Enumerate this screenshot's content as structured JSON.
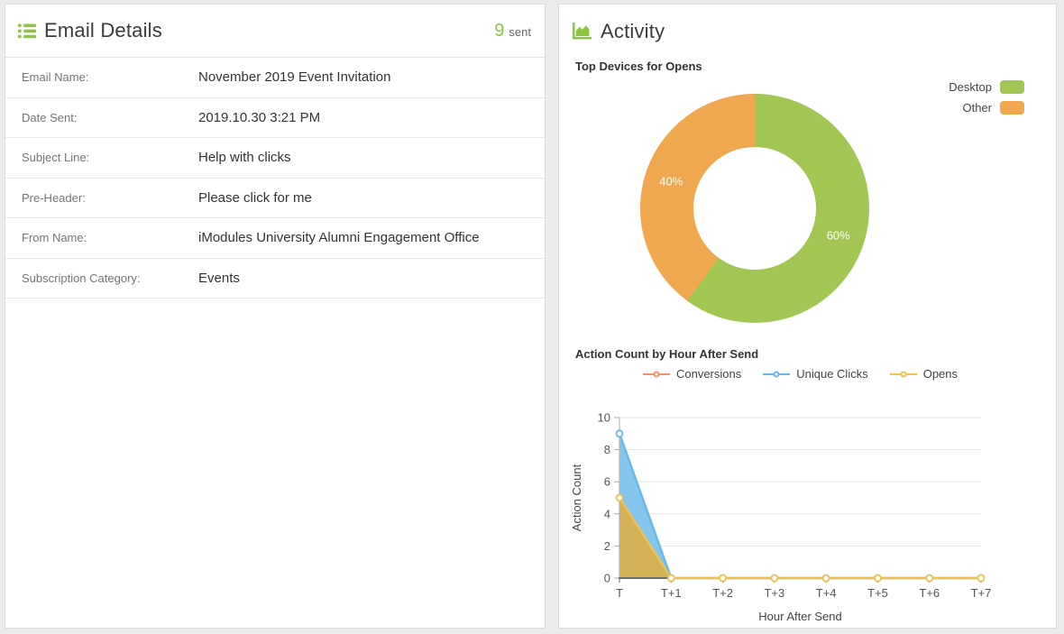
{
  "page": {
    "background": "#ebebeb",
    "accent_green": "#8cc63e"
  },
  "email_details": {
    "title": "Email Details",
    "sent_count": "9",
    "sent_label": "sent",
    "fields": [
      {
        "label": "Email Name:",
        "value": "November 2019 Event Invitation"
      },
      {
        "label": "Date Sent:",
        "value": "2019.10.30 3:21 PM"
      },
      {
        "label": "Subject Line:",
        "value": "Help with clicks"
      },
      {
        "label": "Pre-Header:",
        "value": "Please click for me"
      },
      {
        "label": "From Name:",
        "value": "iModules University Alumni Engagement Office"
      },
      {
        "label": "Subscription Category:",
        "value": "Events"
      }
    ]
  },
  "activity": {
    "title": "Activity",
    "donut_title": "Top Devices for Opens",
    "line_title": "Action Count by Hour After Send"
  },
  "chart_data": [
    {
      "type": "pie",
      "style": "donut",
      "title": "Top Devices for Opens",
      "start_angle_deg": 0,
      "legend_position": "top-right",
      "slices": [
        {
          "label": "Desktop",
          "value": 60,
          "pct_label": "60%",
          "color": "#a1c653"
        },
        {
          "label": "Other",
          "value": 40,
          "pct_label": "40%",
          "color": "#f0a850"
        }
      ]
    },
    {
      "type": "area",
      "title": "Action Count by Hour After Send",
      "categories": [
        "T",
        "T+1",
        "T+2",
        "T+3",
        "T+4",
        "T+5",
        "T+6",
        "T+7"
      ],
      "xlabel": "Hour After Send",
      "ylabel": "Action Count",
      "ylim": [
        0,
        10
      ],
      "yticks": [
        0,
        2,
        4,
        6,
        8,
        10
      ],
      "grid": true,
      "legend_position": "top-center",
      "series": [
        {
          "name": "Conversions",
          "color": "#f0916c",
          "values": [
            null,
            null,
            null,
            null,
            null,
            null,
            null,
            null
          ]
        },
        {
          "name": "Unique Clicks",
          "color": "#6ab8e6",
          "area_color": "#85c6ee",
          "values": [
            9,
            0,
            0,
            0,
            0,
            0,
            0,
            0
          ]
        },
        {
          "name": "Opens",
          "color": "#f2c04e",
          "area_color": "#d4b156",
          "values": [
            5,
            0,
            0,
            0,
            0,
            0,
            0,
            0
          ]
        }
      ]
    }
  ]
}
